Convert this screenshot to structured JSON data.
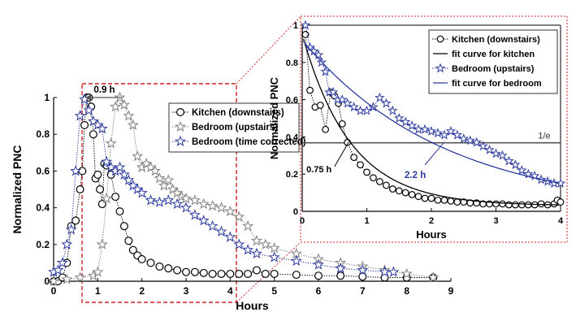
{
  "chart_data": [
    {
      "id": "main",
      "type": "line",
      "xlabel": "Hours",
      "ylabel": "Normalized PNC",
      "xlim": [
        0,
        9
      ],
      "ylim": [
        0,
        1
      ],
      "xticks": [
        "0",
        "1",
        "2",
        "3",
        "4",
        "5",
        "6",
        "7",
        "8",
        "9"
      ],
      "yticks": [
        "0",
        "0.2",
        "0.4",
        "0.6",
        "0.8",
        "1"
      ],
      "legend_position": "top-right",
      "annotations": {
        "peak_shift": "0.9 h"
      },
      "series": [
        {
          "name": "Kitchen (downstairs)",
          "color": "#000000",
          "marker": "circle",
          "x": [
            0.0,
            0.1,
            0.2,
            0.3,
            0.4,
            0.5,
            0.6,
            0.65,
            0.7,
            0.75,
            0.8,
            0.85,
            0.9,
            0.95,
            1.0,
            1.05,
            1.1,
            1.15,
            1.2,
            1.3,
            1.4,
            1.5,
            1.6,
            1.7,
            1.8,
            1.9,
            2.0,
            2.2,
            2.4,
            2.6,
            2.8,
            3.0,
            3.2,
            3.4,
            3.6,
            3.8,
            4.0,
            4.2,
            4.4,
            4.6,
            4.8,
            5.0,
            5.5,
            6.0,
            6.5,
            7.0,
            7.5,
            8.0,
            8.6
          ],
          "y": [
            0.0,
            0.0,
            0.02,
            0.1,
            0.3,
            0.33,
            0.5,
            0.6,
            0.85,
            1.0,
            1.0,
            0.95,
            0.8,
            0.56,
            0.58,
            0.5,
            0.42,
            0.64,
            0.63,
            0.58,
            0.46,
            0.38,
            0.3,
            0.22,
            0.17,
            0.14,
            0.12,
            0.1,
            0.08,
            0.07,
            0.06,
            0.05,
            0.05,
            0.045,
            0.04,
            0.04,
            0.04,
            0.04,
            0.04,
            0.06,
            0.04,
            0.04,
            0.035,
            0.03,
            0.03,
            0.025,
            0.02,
            0.02,
            0.02
          ]
        },
        {
          "name": "Bedroom (upstairs)",
          "color": "#7f7f7f",
          "marker": "star",
          "x": [
            0.0,
            0.3,
            0.6,
            0.9,
            1.0,
            1.1,
            1.2,
            1.3,
            1.4,
            1.5,
            1.6,
            1.7,
            1.8,
            1.9,
            2.0,
            2.1,
            2.2,
            2.3,
            2.4,
            2.5,
            2.6,
            2.7,
            2.8,
            2.9,
            3.0,
            3.2,
            3.4,
            3.6,
            3.8,
            4.0,
            4.2,
            4.4,
            4.6,
            4.8,
            5.0,
            5.5,
            6.0,
            6.5,
            7.0,
            7.5,
            8.0,
            8.6
          ],
          "y": [
            0.0,
            0.01,
            0.02,
            0.03,
            0.05,
            0.2,
            0.45,
            0.75,
            0.95,
            1.0,
            0.96,
            0.9,
            0.85,
            0.68,
            0.62,
            0.64,
            0.62,
            0.6,
            0.56,
            0.52,
            0.55,
            0.5,
            0.48,
            0.46,
            0.45,
            0.44,
            0.42,
            0.41,
            0.4,
            0.38,
            0.35,
            0.3,
            0.22,
            0.2,
            0.18,
            0.15,
            0.12,
            0.1,
            0.08,
            0.06,
            0.04,
            0.02
          ]
        },
        {
          "name": "Bedroom (time corrected)",
          "color": "#2b3a9e",
          "marker": "star",
          "x": [
            0.0,
            0.1,
            0.2,
            0.3,
            0.4,
            0.5,
            0.6,
            0.7,
            0.8,
            0.9,
            1.0,
            1.1,
            1.2,
            1.3,
            1.4,
            1.5,
            1.6,
            1.7,
            1.8,
            1.9,
            2.0,
            2.2,
            2.4,
            2.6,
            2.8,
            3.0,
            3.2,
            3.4,
            3.6,
            3.8,
            4.0,
            4.2,
            4.4,
            4.6,
            5.0,
            5.5,
            6.0,
            6.5,
            7.0,
            7.5,
            7.7
          ],
          "y": [
            0.05,
            0.06,
            0.1,
            0.2,
            0.28,
            0.6,
            0.9,
            0.99,
            0.93,
            0.87,
            0.85,
            0.83,
            0.65,
            0.62,
            0.6,
            0.62,
            0.58,
            0.55,
            0.52,
            0.5,
            0.48,
            0.44,
            0.43,
            0.44,
            0.42,
            0.4,
            0.36,
            0.33,
            0.3,
            0.27,
            0.24,
            0.2,
            0.17,
            0.15,
            0.13,
            0.11,
            0.09,
            0.07,
            0.06,
            0.05,
            0.05
          ]
        }
      ]
    },
    {
      "id": "inset",
      "type": "line",
      "xlabel": "Hours",
      "ylabel": "Normalized PNC",
      "xlim": [
        0,
        4
      ],
      "ylim": [
        0,
        1
      ],
      "xticks": [
        "0",
        "1",
        "2",
        "3",
        "4"
      ],
      "yticks": [
        "0",
        "0.2",
        "0.4",
        "0.6",
        "0.8",
        "1"
      ],
      "legend_position": "top-right",
      "reference_line": {
        "y": 0.368,
        "label": "1/e"
      },
      "annotations": {
        "kitchen_tau": "0.75 h",
        "bedroom_tau": "2.2 h"
      },
      "series": [
        {
          "name": "Kitchen (downstairs)",
          "color": "#000000",
          "marker": "circle",
          "x": [
            0.05,
            0.12,
            0.2,
            0.28,
            0.36,
            0.44,
            0.5,
            0.56,
            0.62,
            0.7,
            0.8,
            0.9,
            1.0,
            1.1,
            1.2,
            1.3,
            1.4,
            1.5,
            1.6,
            1.7,
            1.8,
            1.9,
            2.0,
            2.1,
            2.2,
            2.3,
            2.4,
            2.5,
            2.6,
            2.7,
            2.8,
            2.9,
            3.0,
            3.1,
            3.2,
            3.3,
            3.4,
            3.5,
            3.6,
            3.7,
            3.8,
            3.9,
            3.95,
            4.0
          ],
          "y": [
            0.95,
            0.65,
            0.56,
            0.57,
            0.44,
            0.64,
            0.62,
            0.58,
            0.47,
            0.37,
            0.29,
            0.25,
            0.21,
            0.18,
            0.16,
            0.14,
            0.12,
            0.11,
            0.1,
            0.09,
            0.08,
            0.07,
            0.07,
            0.06,
            0.06,
            0.055,
            0.05,
            0.05,
            0.045,
            0.045,
            0.04,
            0.04,
            0.04,
            0.04,
            0.035,
            0.035,
            0.035,
            0.035,
            0.035,
            0.04,
            0.035,
            0.04,
            0.06,
            0.05
          ]
        },
        {
          "name": "fit curve for kitchen",
          "color": "#000000",
          "marker": "none",
          "fit": {
            "a": 0.92,
            "tau": 0.75,
            "c": 0.03
          }
        },
        {
          "name": "Bedroom (upstairs)",
          "color": "#2b3a9e",
          "marker": "star",
          "x": [
            0.05,
            0.12,
            0.18,
            0.25,
            0.3,
            0.36,
            0.42,
            0.48,
            0.55,
            0.62,
            0.7,
            0.8,
            0.9,
            1.0,
            1.1,
            1.2,
            1.3,
            1.4,
            1.5,
            1.6,
            1.7,
            1.8,
            1.9,
            2.0,
            2.1,
            2.2,
            2.3,
            2.4,
            2.5,
            2.6,
            2.7,
            2.8,
            2.9,
            3.0,
            3.1,
            3.2,
            3.3,
            3.4,
            3.5,
            3.6,
            3.7,
            3.8,
            3.9,
            4.0
          ],
          "y": [
            1.0,
            0.88,
            0.86,
            0.84,
            0.8,
            0.75,
            0.64,
            0.64,
            0.6,
            0.6,
            0.58,
            0.56,
            0.54,
            0.54,
            0.56,
            0.61,
            0.58,
            0.54,
            0.5,
            0.48,
            0.46,
            0.44,
            0.44,
            0.43,
            0.42,
            0.41,
            0.43,
            0.41,
            0.39,
            0.38,
            0.37,
            0.35,
            0.33,
            0.31,
            0.3,
            0.27,
            0.25,
            0.22,
            0.2,
            0.19,
            0.17,
            0.16,
            0.15,
            0.15
          ]
        },
        {
          "name": "fit curve for bedroom",
          "color": "#2b3a9e",
          "marker": "none",
          "fit": {
            "a": 0.92,
            "tau": 2.2,
            "c": 0.0
          }
        }
      ]
    }
  ]
}
